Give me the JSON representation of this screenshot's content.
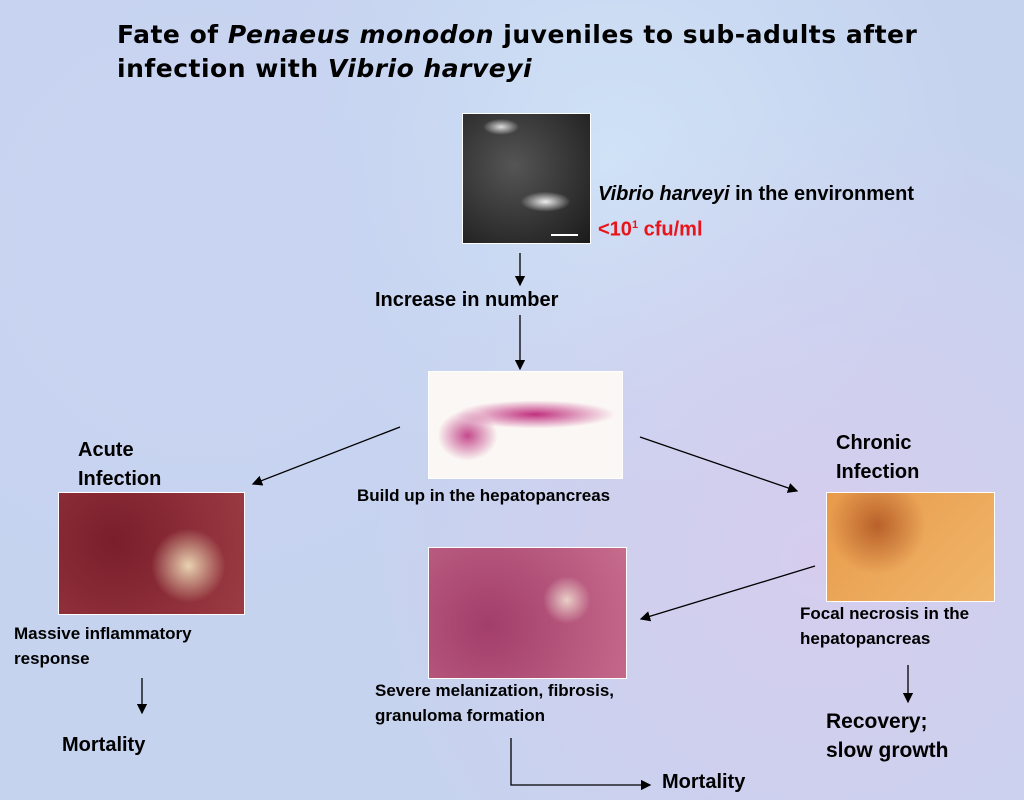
{
  "title": {
    "line1_start": "Fate of",
    "species": "Penaeus monodon",
    "line1_end": "juveniles to sub-adults after",
    "line2_start": "infection with",
    "pathogen": "Vibrio harveyi"
  },
  "nodes": {
    "environment": {
      "organism": "Vibrio harveyi",
      "text": "in the environment",
      "level_prefix": "<10",
      "level_exponent": "1",
      "level_unit": "cfu/ml"
    },
    "increase": "Increase in number",
    "buildup": "Build up in the hepatopancreas",
    "acute": {
      "label": "Acute Infection",
      "response": "Massive inflammatory response",
      "outcome": "Mortality"
    },
    "chronic": {
      "label": "Chronic Infection",
      "response": "Focal necrosis in the hepatopancreas",
      "outcome": "Recovery; slow growth"
    },
    "severe": {
      "response": "Severe melanization, fibrosis, granuloma formation",
      "outcome": "Mortality"
    }
  }
}
